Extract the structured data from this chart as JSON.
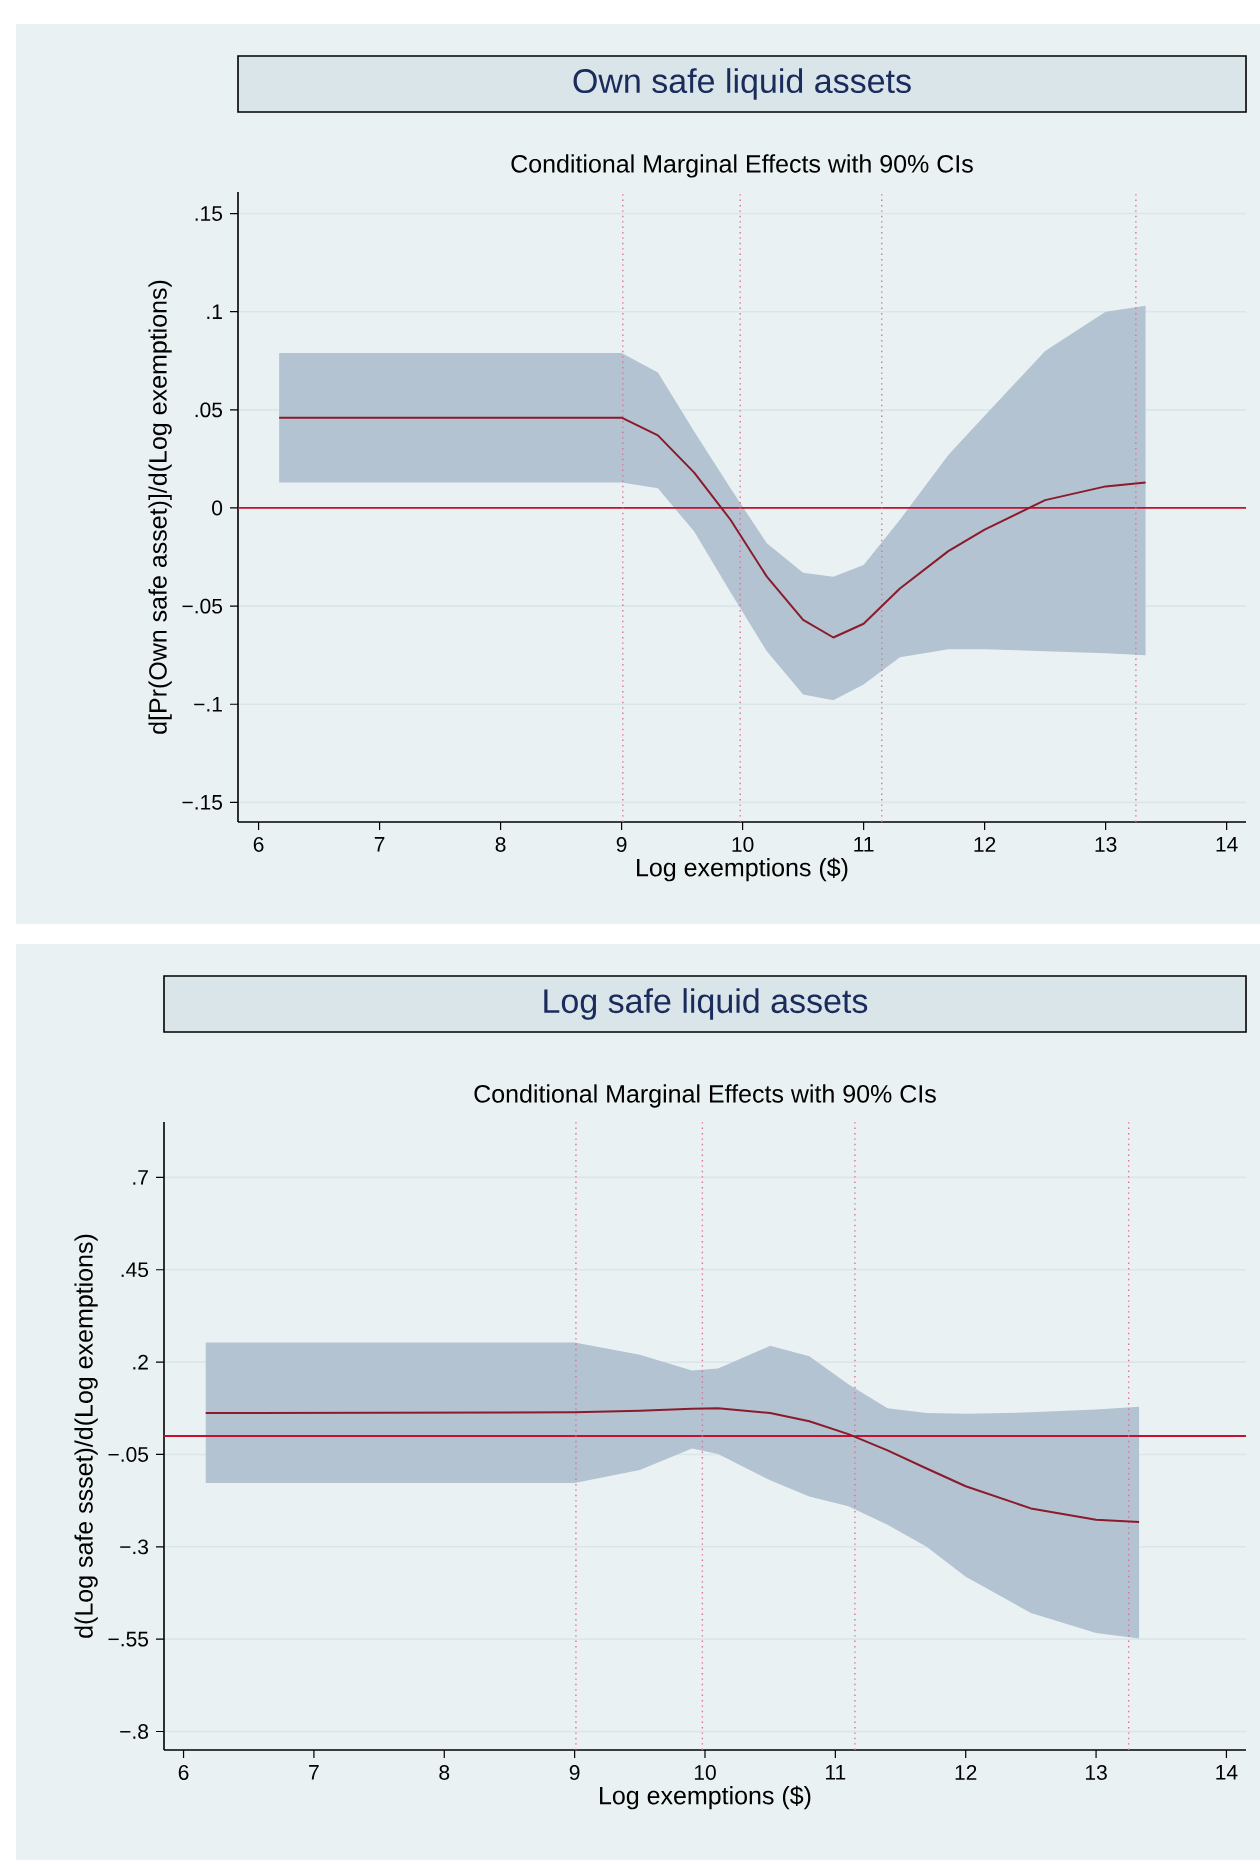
{
  "chart_data": [
    {
      "type": "line",
      "title": "Own safe liquid assets",
      "subtitle": "Conditional Marginal Effects with 90% CIs",
      "xlabel": "Log exemptions ($)",
      "ylabel": "d[Pr(Own safe asset)]/d(Log exemptions)",
      "xlim": [
        5.83,
        14.16
      ],
      "ylim": [
        -0.16,
        0.161
      ],
      "xticks": [
        6,
        7,
        8,
        9,
        10,
        11,
        12,
        13,
        14
      ],
      "yticks": [
        {
          "value": -0.15,
          "label": "−.15"
        },
        {
          "value": -0.1,
          "label": "−.1"
        },
        {
          "value": -0.05,
          "label": "−.05"
        },
        0,
        {
          "value": 0.05,
          "label": ".05"
        },
        {
          "value": 0.1,
          "label": ".1"
        },
        {
          "value": 0.15,
          "label": ".15"
        }
      ],
      "grid": "y",
      "series": [
        {
          "color": "#8b1a2b",
          "x": [
            6.17,
            9.0,
            9.3,
            9.6,
            9.9,
            10.2,
            10.5,
            10.75,
            11.0,
            11.3,
            11.7,
            12.0,
            12.5,
            13.0,
            13.33
          ],
          "values": [
            0.046,
            0.046,
            0.037,
            0.018,
            -0.006,
            -0.035,
            -0.057,
            -0.066,
            -0.059,
            -0.041,
            -0.022,
            -0.011,
            0.004,
            0.011,
            0.013
          ],
          "upper": [
            0.079,
            0.079,
            0.069,
            0.039,
            0.01,
            -0.018,
            -0.033,
            -0.035,
            -0.029,
            -0.006,
            0.027,
            0.047,
            0.08,
            0.1,
            0.103
          ],
          "lower": [
            0.013,
            0.013,
            0.01,
            -0.012,
            -0.043,
            -0.073,
            -0.095,
            -0.098,
            -0.09,
            -0.076,
            -0.072,
            -0.072,
            -0.073,
            -0.074,
            -0.075
          ]
        }
      ],
      "ref_lines": [
        {
          "axis": "y",
          "value": 0,
          "color": "#c8102e",
          "line_style": "solid"
        },
        {
          "axis": "x",
          "value": 9.01,
          "color": "#e0708e",
          "line_style": "dotted"
        },
        {
          "axis": "x",
          "value": 9.98,
          "color": "#e0708e",
          "line_style": "dotted"
        },
        {
          "axis": "x",
          "value": 11.15,
          "color": "#e0708e",
          "line_style": "dotted"
        },
        {
          "axis": "x",
          "value": 13.25,
          "color": "#e0708e",
          "line_style": "dotted"
        }
      ]
    },
    {
      "type": "line",
      "title": "Log safe liquid assets",
      "subtitle": "Conditional Marginal Effects with 90% CIs",
      "xlabel": "Log exemptions ($)",
      "ylabel": "d(Log safe ssset)/d(Log exemptions)",
      "xlim": [
        5.85,
        14.15
      ],
      "ylim": [
        -0.85,
        0.85
      ],
      "xticks": [
        6,
        7,
        8,
        9,
        10,
        11,
        12,
        13,
        14
      ],
      "yticks": [
        {
          "value": -0.8,
          "label": "−.8"
        },
        {
          "value": -0.55,
          "label": "−.55"
        },
        {
          "value": -0.3,
          "label": "−.3"
        },
        {
          "value": -0.05,
          "label": "−.05"
        },
        {
          "value": 0.2,
          "label": ".2"
        },
        {
          "value": 0.45,
          "label": ".45"
        },
        {
          "value": 0.7,
          "label": ".7"
        }
      ],
      "grid": "y",
      "series": [
        {
          "color": "#8b1a2b",
          "x": [
            6.17,
            9.0,
            9.5,
            9.9,
            10.1,
            10.5,
            10.8,
            11.1,
            11.4,
            11.7,
            12.0,
            12.5,
            13.0,
            13.33
          ],
          "values": [
            0.062,
            0.064,
            0.068,
            0.074,
            0.075,
            0.062,
            0.04,
            0.005,
            -0.039,
            -0.088,
            -0.136,
            -0.196,
            -0.227,
            -0.233
          ],
          "upper": [
            0.253,
            0.253,
            0.22,
            0.177,
            0.183,
            0.244,
            0.216,
            0.14,
            0.075,
            0.062,
            0.06,
            0.064,
            0.072,
            0.079
          ],
          "lower": [
            -0.127,
            -0.127,
            -0.092,
            -0.034,
            -0.049,
            -0.12,
            -0.164,
            -0.19,
            -0.24,
            -0.3,
            -0.381,
            -0.479,
            -0.533,
            -0.548
          ]
        }
      ],
      "ref_lines": [
        {
          "axis": "y",
          "value": 0,
          "color": "#c8102e",
          "line_style": "solid"
        },
        {
          "axis": "x",
          "value": 9.01,
          "color": "#e0708e",
          "line_style": "dotted"
        },
        {
          "axis": "x",
          "value": 9.98,
          "color": "#e0708e",
          "line_style": "dotted"
        },
        {
          "axis": "x",
          "value": 11.15,
          "color": "#e0708e",
          "line_style": "dotted"
        },
        {
          "axis": "x",
          "value": 13.25,
          "color": "#e0708e",
          "line_style": "dotted"
        }
      ]
    }
  ]
}
